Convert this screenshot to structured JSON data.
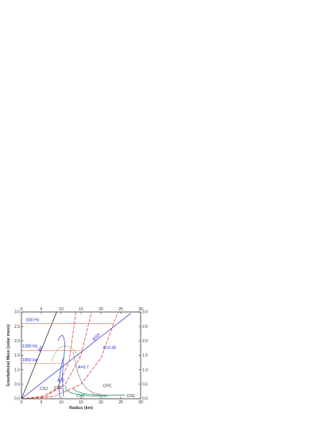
{
  "chart_data": {
    "type": "line",
    "xlabel": "Radius (km)",
    "ylabel": "Gravitational Mass (solar mass)",
    "xlim": [
      0,
      30
    ],
    "ylim": [
      0,
      3.0
    ],
    "x_ticks": [
      0,
      5,
      10,
      15,
      20,
      25,
      30
    ],
    "y_ticks": [
      0.0,
      0.5,
      1.0,
      1.5,
      2.0,
      2.5,
      3.0
    ],
    "x_tick_labels": [
      "0",
      "5",
      "10",
      "15",
      "20",
      "25",
      "30"
    ],
    "y_tick_labels": [
      "0.0",
      "0.5",
      "1.0",
      "1.5",
      "2.0",
      "2.5",
      "3.0"
    ],
    "mirror_axes": true,
    "grid": false,
    "colors": {
      "frame": "#333333",
      "label_blue": "#1f2ad6",
      "bh_line": "#111111",
      "sgs_line": "#2a33cc",
      "red_dashed": "#e03030",
      "cs_curve": "#2346c8",
      "cn_curve": "#1a7f6a",
      "green_dotted": "#55aa33",
      "black_dotted": "#444444"
    },
    "series": [
      {
        "name": "BH",
        "style": "solid",
        "color_key": "bh_line",
        "points": [
          [
            0,
            0
          ],
          [
            8.86,
            3.0
          ]
        ]
      },
      {
        "name": "BSD",
        "style": "solid",
        "color_key": "sgs_line",
        "points": [
          [
            0,
            0
          ],
          [
            27.5,
            2.95
          ]
        ]
      },
      {
        "name": "A=1",
        "style": "dashed",
        "color_key": "red_dashed",
        "points": [
          [
            0,
            0
          ],
          [
            5,
            0.07
          ],
          [
            9,
            0.35
          ],
          [
            12,
            1.3
          ],
          [
            13.7,
            3.0
          ]
        ]
      },
      {
        "name": "A=0.7",
        "style": "dashed",
        "color_key": "red_dashed",
        "points": [
          [
            0,
            0
          ],
          [
            6,
            0.08
          ],
          [
            11,
            0.5
          ],
          [
            15,
            1.5
          ],
          [
            17.6,
            3.0
          ]
        ]
      },
      {
        "name": "A=0.45",
        "style": "dashed",
        "color_key": "red_dashed",
        "points": [
          [
            0,
            0
          ],
          [
            8,
            0.07
          ],
          [
            15,
            0.5
          ],
          [
            20,
            1.4
          ],
          [
            24.3,
            3.0
          ]
        ]
      },
      {
        "name": "CS1",
        "style": "solid",
        "color_key": "cs_curve",
        "points": [
          [
            10.6,
            0.08
          ],
          [
            10.4,
            0.4
          ],
          [
            10.3,
            0.8
          ],
          [
            10.5,
            1.2
          ],
          [
            10.8,
            1.6
          ],
          [
            10.9,
            1.9
          ],
          [
            10.7,
            2.1
          ],
          [
            10.3,
            2.2
          ],
          [
            9.7,
            2.15
          ],
          [
            9.2,
            2.0
          ]
        ]
      },
      {
        "name": "CS2",
        "style": "solid",
        "color_key": "cs_curve",
        "points": [
          [
            9.6,
            0.05
          ],
          [
            9.5,
            0.3
          ],
          [
            9.6,
            0.7
          ],
          [
            9.9,
            1.05
          ],
          [
            10.3,
            1.3
          ],
          [
            10.5,
            1.4
          ]
        ]
      },
      {
        "name": "CN1",
        "style": "solid",
        "color_key": "cn_curve",
        "points": [
          [
            13.0,
            0.35
          ],
          [
            14.0,
            0.25
          ],
          [
            16.0,
            0.17
          ],
          [
            19.0,
            0.13
          ],
          [
            22.0,
            0.12
          ],
          [
            26.0,
            0.12
          ]
        ]
      },
      {
        "name": "CN2",
        "style": "solid",
        "color_key": "cn_curve",
        "points": [
          [
            11.0,
            0.45
          ],
          [
            11.3,
            0.3
          ],
          [
            12.5,
            0.2
          ],
          [
            14.5,
            0.14
          ],
          [
            17.0,
            0.1
          ],
          [
            21.5,
            0.08
          ]
        ]
      },
      {
        "name": "CPC",
        "style": "dotted",
        "color_key": "black_dotted",
        "points": [
          [
            13.0,
            1.6
          ],
          [
            13.5,
            1.3
          ],
          [
            14.2,
            0.9
          ],
          [
            15.2,
            0.55
          ],
          [
            16.4,
            0.35
          ],
          [
            17.8,
            0.22
          ],
          [
            19.5,
            0.15
          ],
          [
            21.5,
            0.12
          ]
        ]
      },
      {
        "name": "",
        "style": "dotted",
        "color_key": "green_dotted",
        "points": [
          [
            7.6,
            1.3
          ],
          [
            8.3,
            1.55
          ],
          [
            9.4,
            1.75
          ],
          [
            10.6,
            1.82
          ],
          [
            11.8,
            1.8
          ],
          [
            13.0,
            1.7
          ],
          [
            14.0,
            1.55
          ],
          [
            14.8,
            1.4
          ]
        ]
      },
      {
        "name": "",
        "style": "dotted",
        "color_key": "red_dashed",
        "points": [
          [
            0,
            2.6
          ],
          [
            23.4,
            2.6
          ]
        ]
      },
      {
        "name": "",
        "style": "dotted",
        "color_key": "red_dashed",
        "points": [
          [
            0,
            1.67
          ],
          [
            15.3,
            1.67
          ]
        ]
      },
      {
        "name": "",
        "style": "dotted",
        "color_key": "red_dashed",
        "points": [
          [
            0,
            1.23
          ],
          [
            11.0,
            1.23
          ]
        ]
      }
    ],
    "annotations": [
      {
        "key": "f830",
        "text": "830 Hz",
        "color_key": "label_blue",
        "at": [
          1.2,
          2.68
        ]
      },
      {
        "key": "f1300",
        "text": "1300 Hz",
        "color_key": "label_blue",
        "at": [
          0.2,
          1.77
        ]
      },
      {
        "key": "f1850",
        "text": "1850 Hz",
        "color_key": "label_blue",
        "at": [
          0.2,
          1.3
        ]
      },
      {
        "key": "bh",
        "text": "BH",
        "color_key": "label_blue",
        "at": [
          4.7,
          1.62
        ],
        "rotate": -62
      },
      {
        "key": "bsd",
        "text": "BSD",
        "color_key": "label_blue",
        "at": [
          18.3,
          2.0
        ],
        "rotate": -44
      },
      {
        "key": "a045",
        "text": "A=0.45",
        "color_key": "label_blue",
        "at": [
          20.5,
          1.72
        ]
      },
      {
        "key": "a07",
        "text": "A=0.7",
        "color_key": "label_blue",
        "at": [
          14.2,
          1.05
        ]
      },
      {
        "key": "a1",
        "text": "A=1",
        "color_key": "label_blue",
        "at": [
          9.0,
          0.59
        ]
      },
      {
        "key": "cs2",
        "text": "CS2",
        "color_key": "frame",
        "at": [
          4.6,
          0.3
        ]
      },
      {
        "key": "cs1",
        "text": "CS1",
        "color_key": "frame",
        "at": [
          8.2,
          0.33
        ]
      },
      {
        "key": "cn2",
        "text": "CN2",
        "color_key": "cn_curve",
        "at": [
          13.8,
          0.05
        ]
      },
      {
        "key": "cpc",
        "text": "CPC",
        "color_key": "frame",
        "at": [
          20.5,
          0.4
        ]
      },
      {
        "key": "cn1",
        "text": "CN1",
        "color_key": "frame",
        "at": [
          26.5,
          0.05
        ]
      }
    ]
  }
}
